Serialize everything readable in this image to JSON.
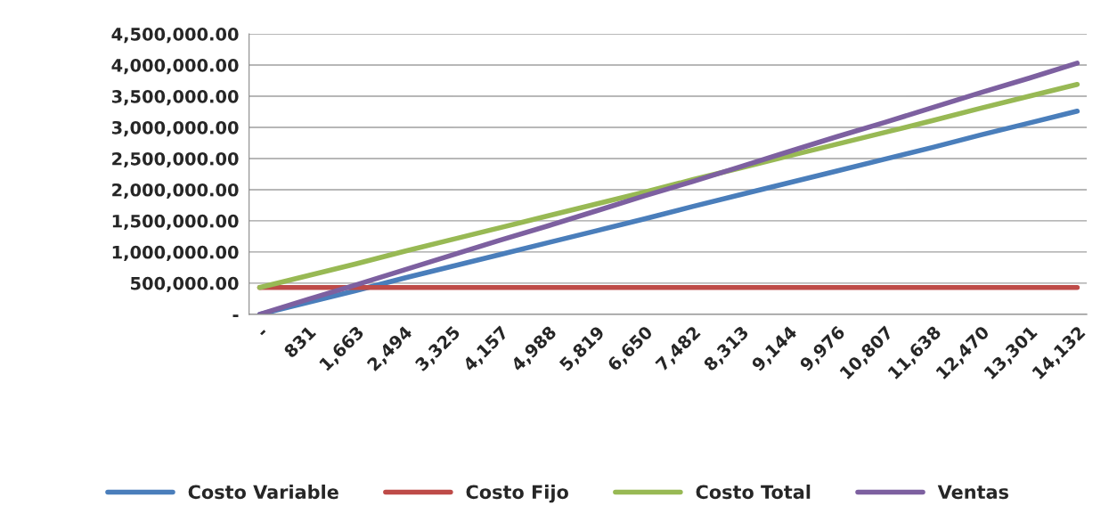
{
  "chart_data": {
    "type": "line",
    "categories": [
      "-",
      "831",
      "1,663",
      "2,494",
      "3,325",
      "4,157",
      "4,988",
      "5,819",
      "6,650",
      "7,482",
      "8,313",
      "9,144",
      "9,976",
      "10,807",
      "11,638",
      "12,470",
      "13,301",
      "14,132"
    ],
    "series": [
      {
        "name": "Costo Variable",
        "color": "#4a7ebb",
        "values": [
          0,
          190000,
          380000,
          580000,
          770000,
          960000,
          1150000,
          1340000,
          1530000,
          1730000,
          1920000,
          2110000,
          2300000,
          2490000,
          2680000,
          2880000,
          3070000,
          3260000
        ]
      },
      {
        "name": "Costo Fijo",
        "color": "#be4b48",
        "values": [
          430000,
          430000,
          430000,
          430000,
          430000,
          430000,
          430000,
          430000,
          430000,
          430000,
          430000,
          430000,
          430000,
          430000,
          430000,
          430000,
          430000,
          430000
        ]
      },
      {
        "name": "Costo Total",
        "color": "#98b954",
        "values": [
          430000,
          620000,
          810000,
          1010000,
          1200000,
          1390000,
          1580000,
          1770000,
          1960000,
          2160000,
          2350000,
          2540000,
          2730000,
          2920000,
          3110000,
          3310000,
          3500000,
          3690000
        ]
      },
      {
        "name": "Ventas",
        "color": "#7d60a0",
        "values": [
          0,
          240000,
          470000,
          710000,
          950000,
          1190000,
          1420000,
          1660000,
          1900000,
          2130000,
          2370000,
          2610000,
          2850000,
          3080000,
          3320000,
          3560000,
          3790000,
          4030000
        ]
      }
    ],
    "ylim": [
      0,
      4500000
    ],
    "yticks": [
      {
        "value": 0,
        "label": "-"
      },
      {
        "value": 500000,
        "label": "500,000.00"
      },
      {
        "value": 1000000,
        "label": "1,000,000.00"
      },
      {
        "value": 1500000,
        "label": "1,500,000.00"
      },
      {
        "value": 2000000,
        "label": "2,000,000.00"
      },
      {
        "value": 2500000,
        "label": "2,500,000.00"
      },
      {
        "value": 3000000,
        "label": "3,000,000.00"
      },
      {
        "value": 3500000,
        "label": "3,500,000.00"
      },
      {
        "value": 4000000,
        "label": "4,000,000.00"
      },
      {
        "value": 4500000,
        "label": "4,500,000.00"
      }
    ],
    "grid": "y",
    "legend": "bottom",
    "marker": "none",
    "line_style": "solid"
  }
}
